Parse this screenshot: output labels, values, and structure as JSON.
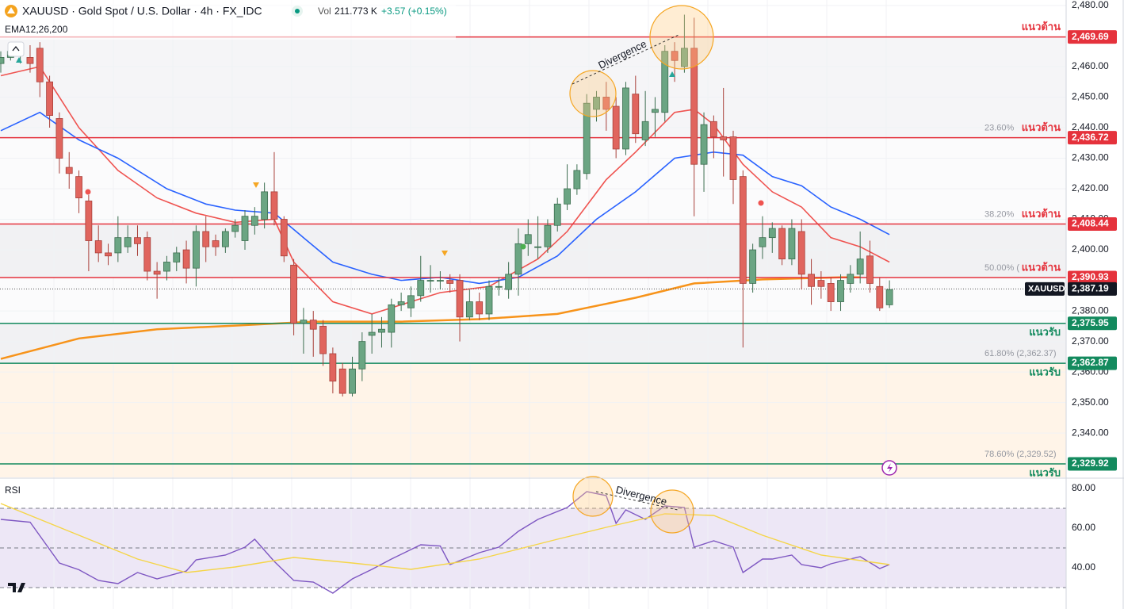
{
  "header": {
    "symbol": "XAUUSD · Gold Spot / U.S. Dollar · 4h · FX_IDC",
    "vol_label": "Vol",
    "vol_value": "211.773 K",
    "change": "+3.57 (+0.15%)",
    "indicator": "EMA12,26,200"
  },
  "chart_data": [
    {
      "type": "candlestick",
      "up_color": "#6ba583",
      "down_color": "#e0655e",
      "open": [
        2461,
        2463,
        2464,
        2463,
        2466,
        2455,
        2443,
        2427,
        2424,
        2416,
        2403,
        2399,
        2399,
        2401,
        2404,
        2404,
        2393,
        2393,
        2396,
        2400,
        2394,
        2406,
        2403,
        2401,
        2406,
        2403,
        2408,
        2410,
        2419,
        2410,
        2395,
        2376,
        2377,
        2375,
        2366,
        2361,
        2353,
        2361,
        2372,
        2373,
        2373,
        2382,
        2381,
        2385,
        2390,
        2390,
        2390,
        2390,
        2378,
        2383,
        2379,
        2388,
        2387,
        2392,
        2402,
        2401,
        2401,
        2408,
        2415,
        2420,
        2425,
        2446,
        2450,
        2447,
        2433,
        2451,
        2436,
        2445,
        2445,
        2465,
        2460,
        2466,
        2428,
        2442,
        2437,
        2437,
        2424,
        2389,
        2401,
        2404,
        2407,
        2397,
        2406,
        2392,
        2390,
        2389,
        2383,
        2389,
        2392,
        2398,
        2388,
        2382
      ],
      "high": [
        2465,
        2467,
        2468,
        2467,
        2468,
        2457,
        2445,
        2432,
        2426,
        2418,
        2408,
        2402,
        2411,
        2408,
        2408,
        2406,
        2396,
        2398,
        2401,
        2403,
        2408,
        2411,
        2405,
        2407,
        2410,
        2413,
        2414,
        2422,
        2432,
        2411,
        2397,
        2381,
        2380,
        2377,
        2368,
        2363,
        2365,
        2373,
        2379,
        2378,
        2384,
        2386,
        2388,
        2398,
        2395,
        2393,
        2392,
        2392,
        2387,
        2386,
        2390,
        2391,
        2396,
        2407,
        2410,
        2411,
        2410,
        2417,
        2428,
        2428,
        2451,
        2452,
        2455,
        2450,
        2455,
        2457,
        2452,
        2450,
        2467,
        2468,
        2477,
        2476,
        2445,
        2444,
        2453,
        2439,
        2426,
        2402,
        2411,
        2409,
        2408,
        2410,
        2410,
        2397,
        2393,
        2391,
        2392,
        2395,
        2406,
        2403,
        2391,
        2390
      ],
      "low": [
        2458,
        2462,
        2461,
        2458,
        2450,
        2440,
        2425,
        2420,
        2412,
        2393,
        2396,
        2395,
        2396,
        2399,
        2398,
        2390,
        2384,
        2390,
        2393,
        2389,
        2388,
        2396,
        2398,
        2399,
        2404,
        2400,
        2405,
        2407,
        2408,
        2396,
        2372,
        2366,
        2365,
        2362,
        2353,
        2352,
        2352,
        2357,
        2366,
        2368,
        2368,
        2380,
        2378,
        2383,
        2386,
        2387,
        2386,
        2370,
        2377,
        2377,
        2377,
        2385,
        2384,
        2385,
        2398,
        2397,
        2399,
        2406,
        2413,
        2418,
        2423,
        2442,
        2439,
        2430,
        2431,
        2435,
        2434,
        2437,
        2442,
        2455,
        2458,
        2411,
        2419,
        2430,
        2424,
        2415,
        2368,
        2386,
        2397,
        2399,
        2395,
        2395,
        2387,
        2382,
        2384,
        2380,
        2380,
        2386,
        2389,
        2386,
        2380,
        2381
      ],
      "close": [
        2463,
        2465,
        2465,
        2461,
        2455,
        2444,
        2430,
        2425,
        2417,
        2403,
        2399,
        2398,
        2404,
        2404,
        2402,
        2393,
        2392,
        2396,
        2399,
        2394,
        2406,
        2401,
        2401,
        2406,
        2408,
        2411,
        2411,
        2419,
        2410,
        2398,
        2376,
        2377,
        2374,
        2366,
        2357,
        2353,
        2361,
        2370,
        2373,
        2374,
        2382,
        2383,
        2385,
        2390,
        2390,
        2390,
        2389,
        2378,
        2383,
        2379,
        2388,
        2388,
        2392,
        2402,
        2405,
        2401,
        2408,
        2415,
        2420,
        2426,
        2448,
        2450,
        2446,
        2433,
        2453,
        2438,
        2442,
        2446,
        2465,
        2462,
        2466,
        2428,
        2441,
        2437,
        2436,
        2423,
        2389,
        2400,
        2404,
        2407,
        2397,
        2407,
        2392,
        2388,
        2388,
        2383,
        2390,
        2392,
        2397,
        2389,
        2381,
        2387
      ],
      "series": [
        {
          "color": "#ef5350",
          "x": [
            0,
            4,
            8,
            12,
            16,
            20,
            24,
            28,
            30,
            34,
            38,
            42,
            45,
            50,
            55,
            58,
            62,
            65,
            69,
            71,
            73,
            76,
            79,
            82,
            85,
            88,
            91
          ],
          "values": [
            2457,
            2460,
            2440,
            2426,
            2417,
            2412,
            2409,
            2410,
            2396,
            2383,
            2379,
            2383,
            2386,
            2388,
            2397,
            2406,
            2423,
            2432,
            2445,
            2446,
            2441,
            2428,
            2419,
            2414,
            2404,
            2401,
            2396
          ]
        },
        {
          "color": "#2962ff",
          "x": [
            0,
            4,
            8,
            12,
            17,
            21,
            24,
            28,
            31,
            34,
            38,
            41,
            45,
            49,
            53,
            57,
            61,
            65,
            69,
            73,
            76,
            79,
            82,
            85,
            88,
            91
          ],
          "values": [
            2439,
            2445,
            2436,
            2430,
            2420,
            2415,
            2413,
            2412,
            2404,
            2396,
            2392,
            2390,
            2391,
            2389,
            2391,
            2398,
            2410,
            2419,
            2430,
            2432,
            2431,
            2424,
            2421,
            2414,
            2410,
            2405
          ]
        },
        {
          "color": "#f7931a",
          "x": [
            0,
            8,
            16,
            24,
            32,
            41,
            49,
            57,
            65,
            71,
            78,
            86,
            88
          ],
          "values": [
            2364.3,
            2371,
            2374,
            2375.2,
            2376.5,
            2376.5,
            2377.3,
            2379,
            2384.3,
            2389,
            2390.3,
            2391,
            2391
          ]
        }
      ],
      "ylim": [
        2325.5,
        2481.8
      ],
      "yticks": [
        {
          "value": 2480,
          "label": "2,480.00"
        },
        {
          "value": 2460,
          "label": "2,460.00"
        },
        {
          "value": 2450,
          "label": "2,450.00"
        },
        {
          "value": 2440,
          "label": "2,440.00"
        },
        {
          "value": 2430,
          "label": "2,430.00"
        },
        {
          "value": 2420,
          "label": "2,420.00"
        },
        {
          "value": 2410,
          "label": "2,410.00"
        },
        {
          "value": 2400,
          "label": "2,400.00"
        },
        {
          "value": 2380,
          "label": "2,380.00"
        },
        {
          "value": 2370,
          "label": "2,370.00"
        },
        {
          "value": 2360,
          "label": "2,360.00"
        },
        {
          "value": 2350,
          "label": "2,350.00"
        },
        {
          "value": 2340,
          "label": "2,340.00"
        }
      ],
      "grid": true,
      "levels": [
        {
          "value": 2469.69,
          "label": "2,469.69",
          "text": "แนวต้าน",
          "placement": "above",
          "color": "#e5323c",
          "zone": "#f5f5f7"
        },
        {
          "value": 2436.72,
          "label": "2,436.72",
          "text": "แนวต้าน",
          "placement": "above",
          "color": "#e5323c",
          "zone": "#fbfbfc",
          "fib": "23.60%"
        },
        {
          "value": 2408.44,
          "label": "2,408.44",
          "text": "แนวต้าน",
          "placement": "above",
          "color": "#e5323c",
          "zone": "#f1f1f3",
          "fib": "38.20%"
        },
        {
          "value": 2390.93,
          "label": "2,390.93",
          "text": "แนวต้าน",
          "placement": "above",
          "color": "#e5323c",
          "zone": "#fbfbfc",
          "fib": "50.00% ("
        },
        {
          "value": 2375.95,
          "label": "2,375.95",
          "text": "แนวรับ",
          "placement": "below",
          "color": "#138a5e",
          "zone": "#f1f1f3"
        },
        {
          "value": 2362.87,
          "label": "2,362.87",
          "text": "แนวรับ",
          "placement": "below",
          "color": "#138a5e",
          "zone": "#fff4e8",
          "fib": "61.80% (2,362.37)"
        },
        {
          "value": 2329.92,
          "label": "2,329.92",
          "text": "แนวรับ",
          "placement": "below",
          "color": "#138a5e",
          "zone": "#fff4e8",
          "fib": "78.60% (2,329.52)"
        }
      ],
      "last": {
        "value": 2387.19,
        "label": "2,387.19",
        "symbol": "XAUUSD"
      },
      "annotation": "Divergence"
    },
    {
      "type": "line",
      "title": "RSI",
      "series": [
        {
          "color": "#7e57c2",
          "x": [
            0,
            3,
            6,
            8,
            10,
            12,
            14,
            16,
            19,
            20,
            23,
            25,
            26,
            28,
            30,
            32,
            34,
            36,
            38,
            40,
            43,
            45,
            46,
            49,
            51,
            53,
            55,
            58,
            60,
            62,
            63,
            64,
            66,
            68,
            70,
            71,
            73,
            75,
            76,
            78,
            79,
            81,
            82,
            84,
            85,
            88,
            90,
            91
          ],
          "values": [
            64.4,
            63,
            42.4,
            39,
            33.6,
            32,
            37.6,
            34.4,
            38.4,
            44,
            46.4,
            50.4,
            54.4,
            43.2,
            33.6,
            32.8,
            27.2,
            34.4,
            39.2,
            44.4,
            51.6,
            51,
            41.6,
            47.6,
            50.4,
            58.4,
            64.4,
            70.4,
            78.4,
            76.4,
            62.4,
            69.2,
            64.4,
            71.2,
            70.4,
            50.4,
            53.6,
            50.4,
            37.6,
            44.4,
            44.4,
            46.4,
            41.6,
            40,
            42,
            45.6,
            39.6,
            41.6
          ]
        },
        {
          "color": "#f5d547",
          "x": [
            0,
            8,
            14,
            19,
            24,
            30,
            36,
            42,
            49,
            57,
            62,
            68,
            73,
            78,
            84,
            91
          ],
          "values": [
            72.4,
            56.4,
            44.4,
            37.6,
            40.4,
            45.2,
            42.4,
            39.2,
            44.4,
            54.4,
            60.4,
            67.2,
            66.4,
            56.4,
            46.4,
            41.6
          ]
        }
      ],
      "ylim": [
        19.2,
        84.8
      ],
      "yticks": [
        {
          "value": 80,
          "label": "80.00"
        },
        {
          "value": 60,
          "label": "60.00"
        },
        {
          "value": 40,
          "label": "40.00"
        }
      ],
      "levels": [
        70,
        50,
        30
      ],
      "band_color": "#ede7f6",
      "annotation": "Divergence"
    }
  ]
}
